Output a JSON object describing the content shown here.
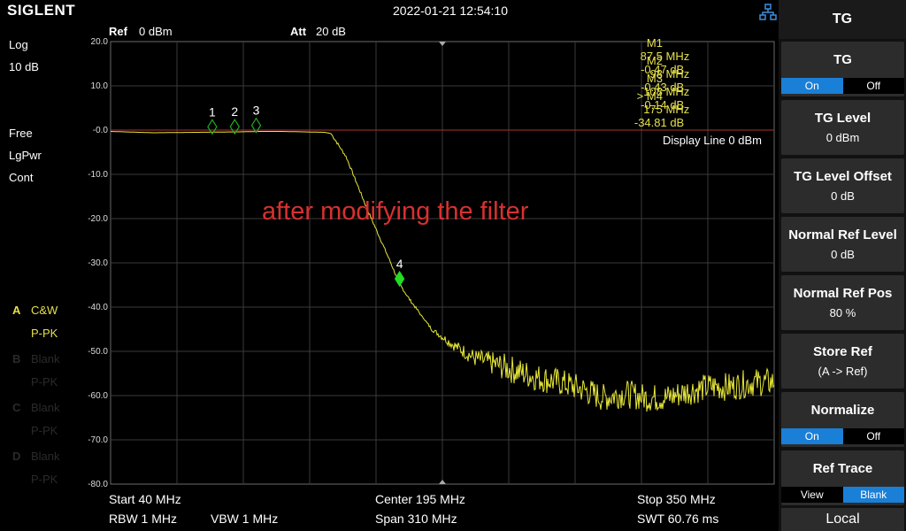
{
  "header": {
    "brand": "SIGLENT",
    "datetime": "2022-01-21 12:54:10"
  },
  "top_params": {
    "ref": "Ref",
    "ref_value": "0 dBm",
    "att": "Att",
    "att_value": "20 dB"
  },
  "left_info": {
    "scale_type": "Log",
    "scale_div": "10 dB",
    "trig": "Free",
    "det": "LgPwr",
    "sweep": "Cont"
  },
  "traces": [
    {
      "letter": "A",
      "type": "C&W",
      "det": "P-PK",
      "active": true
    },
    {
      "letter": "B",
      "type": "Blank",
      "det": "P-PK",
      "active": false
    },
    {
      "letter": "C",
      "type": "Blank",
      "det": "P-PK",
      "active": false
    },
    {
      "letter": "D",
      "type": "Blank",
      "det": "P-PK",
      "active": false
    }
  ],
  "markers": [
    {
      "prefix": "",
      "name": "M1",
      "freq": "87.5 MHz",
      "level": "-0.47 dB"
    },
    {
      "prefix": "",
      "name": "M2",
      "freq": "98 MHz",
      "level": "-0.43 dB"
    },
    {
      "prefix": "",
      "name": "M3",
      "freq": "108 MHz",
      "level": "-0.14 dB"
    },
    {
      "prefix": ">",
      "name": "M4",
      "freq": "175 MHz",
      "level": "-34.81 dB"
    }
  ],
  "annotation": "after modifying the filter",
  "display_line": "Display Line 0 dBm",
  "bottom": {
    "start": "Start  40 MHz",
    "center": "Center  195 MHz",
    "stop": "Stop  350 MHz",
    "rbw": "RBW  1 MHz",
    "vbw": "VBW  1 MHz",
    "span": "Span  310 MHz",
    "swt": "SWT  60.76 ms"
  },
  "menu": {
    "title": "TG",
    "tg": {
      "label": "TG",
      "on": "On",
      "off": "Off",
      "selected": "On"
    },
    "tg_level": {
      "label": "TG Level",
      "value": "0 dBm"
    },
    "tg_level_offset": {
      "label": "TG Level Offset",
      "value": "0 dB"
    },
    "normal_ref_level": {
      "label": "Normal Ref Level",
      "value": "0 dB"
    },
    "normal_ref_pos": {
      "label": "Normal Ref Pos",
      "value": "80 %"
    },
    "store_ref": {
      "label": "Store Ref",
      "value": "(A -> Ref)"
    },
    "normalize": {
      "label": "Normalize",
      "on": "On",
      "off": "Off",
      "selected": "On"
    },
    "ref_trace": {
      "label": "Ref Trace",
      "view": "View",
      "blank": "Blank",
      "selected": "Blank"
    },
    "local": "Local"
  },
  "colors": {
    "trace": "#e8e83a",
    "marker_active": "#22dd22",
    "marker_inactive": "#22aa22",
    "annotation": "#d83030",
    "selected": "#1a7fd6",
    "display_line": "#b03030"
  },
  "chart_data": {
    "type": "line",
    "title": "",
    "xlabel": "",
    "ylabel": "",
    "xlim": [
      40,
      350
    ],
    "ylim": [
      -80,
      20
    ],
    "y_ticks": [
      "20.0",
      "10.0",
      "-0.0",
      "-10.0",
      "-20.0",
      "-30.0",
      "-40.0",
      "-50.0",
      "-60.0",
      "-70.0",
      "-80.0"
    ],
    "grid": true,
    "series": [
      {
        "x": [
          40,
          60,
          80,
          90,
          100,
          110,
          120,
          130,
          140,
          143,
          150,
          160,
          170,
          175,
          180,
          190,
          200,
          210,
          220,
          230,
          240,
          250,
          260,
          270,
          280,
          290,
          300,
          310,
          320,
          330,
          340,
          350
        ],
        "values": [
          -0.3,
          -0.6,
          -0.5,
          -0.45,
          -0.4,
          -0.3,
          -0.3,
          -0.4,
          -0.5,
          -0.8,
          -6,
          -18,
          -29,
          -34.8,
          -38.5,
          -45,
          -48.5,
          -51.5,
          -53,
          -54.5,
          -56,
          -57,
          -58.5,
          -60.5,
          -59.5,
          -60.5,
          -60.5,
          -59,
          -58,
          -58,
          -57,
          -57
        ]
      }
    ],
    "markers": [
      {
        "label": "1",
        "x": 87.5,
        "y": -0.47
      },
      {
        "label": "2",
        "x": 98,
        "y": -0.43
      },
      {
        "label": "3",
        "x": 108,
        "y": -0.14
      },
      {
        "label": "4",
        "x": 175,
        "y": -34.81
      }
    ],
    "display_line": 0
  }
}
